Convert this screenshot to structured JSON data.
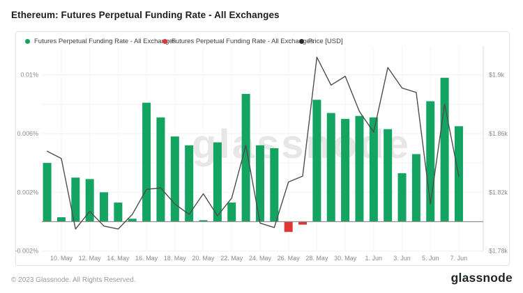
{
  "page": {
    "title": "Ethereum: Futures Perpetual Funding Rate - All Exchanges",
    "footer_copyright": "© 2023 Glassnode. All Rights Reserved.",
    "brand_wordmark": "glassnode",
    "watermark_text": "glassnode"
  },
  "legend": {
    "items": [
      {
        "label": "Futures Perpetual Funding Rate - All Exchanges",
        "color": "#13a461",
        "series": "funding-rate-positive"
      },
      {
        "label": "Futures Perpetual Funding Rate - All Exchanges",
        "color": "#e23434",
        "series": "funding-rate-negative"
      },
      {
        "label": "Price [USD]",
        "color": "#2b2b2b",
        "series": "price-usd"
      }
    ]
  },
  "chart_data": {
    "type": "bar",
    "title": "Ethereum: Futures Perpetual Funding Rate - All Exchanges",
    "grid": true,
    "legend_position": "top",
    "categories": [
      "9. May",
      "10. May",
      "11. May",
      "12. May",
      "13. May",
      "14. May",
      "15. May",
      "16. May",
      "17. May",
      "18. May",
      "19. May",
      "20. May",
      "21. May",
      "22. May",
      "23. May",
      "24. May",
      "25. May",
      "26. May",
      "27. May",
      "28. May",
      "29. May",
      "30. May",
      "31. May",
      "1. Jun",
      "2. Jun",
      "3. Jun",
      "4. Jun",
      "5. Jun",
      "6. Jun",
      "7. Jun"
    ],
    "x_tick_labels": [
      "10. May",
      "12. May",
      "14. May",
      "16. May",
      "18. May",
      "20. May",
      "22. May",
      "24. May",
      "26. May",
      "28. May",
      "30. May",
      "1. Jun",
      "3. Jun",
      "5. Jun",
      "7. Jun"
    ],
    "series": [
      {
        "name": "Futures Perpetual Funding Rate - All Exchanges",
        "type": "bar",
        "unit": "%",
        "values": [
          0.004,
          0.0003,
          0.003,
          0.0029,
          0.002,
          0.0013,
          0.0002,
          0.0081,
          0.0071,
          0.0058,
          0.0052,
          0.0001,
          0.0054,
          0.0013,
          0.0087,
          0.0052,
          0.005,
          -0.0007,
          -0.0002,
          0.0083,
          0.0074,
          0.007,
          0.0072,
          0.0071,
          0.0063,
          0.0033,
          0.0046,
          0.0082,
          0.0098,
          0.0065
        ]
      },
      {
        "name": "Price [USD]",
        "type": "line",
        "unit": "$k",
        "values": [
          1.848,
          1.843,
          1.795,
          1.807,
          1.797,
          1.795,
          1.805,
          1.822,
          1.823,
          1.812,
          1.805,
          1.819,
          1.804,
          1.816,
          1.852,
          1.799,
          1.796,
          1.827,
          1.831,
          1.912,
          1.893,
          1.899,
          1.875,
          1.861,
          1.905,
          1.891,
          1.888,
          1.812,
          1.88,
          1.831
        ]
      }
    ],
    "left_axis": {
      "label_unit": "%",
      "tick_labels": [
        "0.01%",
        "0.006%",
        "0.002%",
        "-0.002%"
      ],
      "tick_values": [
        0.01,
        0.006,
        0.002,
        -0.002
      ],
      "gridline_values": [
        0.01,
        0.008,
        0.006,
        0.004,
        0.002,
        -0.002
      ],
      "ylim": [
        -0.002,
        0.012
      ]
    },
    "right_axis": {
      "label_unit": "$k",
      "tick_labels": [
        "$1.9k",
        "$1.86k",
        "$1.82k",
        "$1.78k"
      ],
      "tick_values_k": [
        1.9,
        1.86,
        1.82,
        1.78
      ],
      "ylim_k": [
        1.78,
        1.92
      ]
    },
    "colors": {
      "bar_positive": "#13a461",
      "bar_negative": "#e23434",
      "price_line": "#4d4d4d",
      "gridline": "#f0f0f0",
      "zero_line": "#8f8f8f",
      "axis_text": "#8a8a8a",
      "watermark": "#e7e7e7"
    }
  }
}
